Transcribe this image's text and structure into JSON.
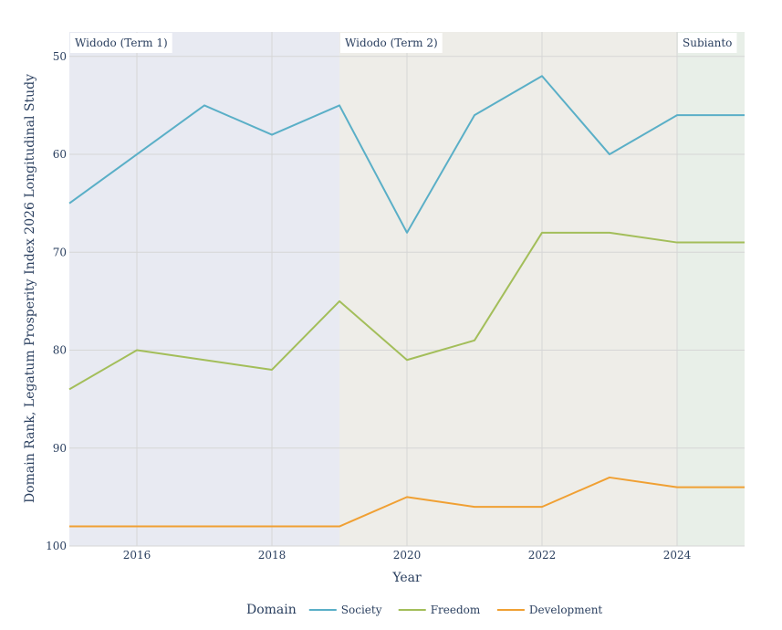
{
  "chart_data": {
    "type": "line",
    "xlabel": "Year",
    "ylabel": "Domain Rank, Legatum Prosperity Index 2026 Longitudinal Study",
    "xlim": [
      2015,
      2025
    ],
    "ylim": [
      100,
      47.5
    ],
    "y_reversed": true,
    "x_ticks": [
      2016,
      2018,
      2020,
      2022,
      2024
    ],
    "y_ticks": [
      50,
      60,
      70,
      80,
      90,
      100
    ],
    "grid": true,
    "legend": {
      "title": "Domain",
      "placement": "bottom-center",
      "orientation": "horizontal"
    },
    "bands": [
      {
        "label": "Widodo (Term 1)",
        "x0": 2015,
        "x1": 2019,
        "color": "#e8eaf2"
      },
      {
        "label": "Widodo (Term 2)",
        "x0": 2019,
        "x1": 2024,
        "color": "#eeede8"
      },
      {
        "label": "Subianto",
        "x0": 2024,
        "x1": 2025,
        "color": "#e8efe8"
      }
    ],
    "x": [
      2015,
      2016,
      2017,
      2018,
      2019,
      2020,
      2021,
      2022,
      2023,
      2024,
      2025
    ],
    "series": [
      {
        "name": "Society",
        "color": "#5aafc7",
        "values": [
          65,
          60,
          55,
          58,
          55,
          68,
          56,
          52,
          60,
          56,
          56
        ]
      },
      {
        "name": "Freedom",
        "color": "#a3be5a",
        "values": [
          84,
          80,
          81,
          82,
          75,
          81,
          79,
          68,
          68,
          69,
          69
        ]
      },
      {
        "name": "Development",
        "color": "#f0a033",
        "values": [
          98,
          98,
          98,
          98,
          98,
          95,
          96,
          96,
          93,
          94,
          94
        ]
      }
    ]
  }
}
